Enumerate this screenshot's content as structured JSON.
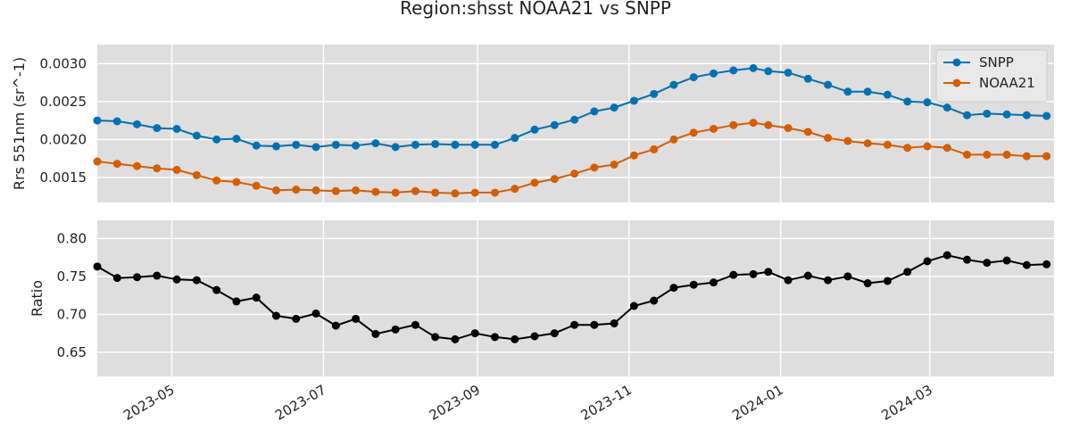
{
  "title": "Region:shsst NOAA21 vs SNPP",
  "chart_data": [
    {
      "type": "line",
      "ylabel": "Rrs 551nm (sr^-1)",
      "xlim": [
        "2023-04-01",
        "2024-04-20"
      ],
      "ylim": [
        0.00117,
        0.00325
      ],
      "yticks": [
        0.0015,
        0.002,
        0.0025,
        0.003
      ],
      "ytick_labels": [
        "0.0015",
        "0.0020",
        "0.0025",
        "0.0030"
      ],
      "grid": true,
      "legend": "top-right",
      "x": [
        "2023-04-01",
        "2023-04-09",
        "2023-04-17",
        "2023-04-25",
        "2023-05-03",
        "2023-05-11",
        "2023-05-19",
        "2023-05-27",
        "2023-06-04",
        "2023-06-12",
        "2023-06-20",
        "2023-06-28",
        "2023-07-06",
        "2023-07-14",
        "2023-07-22",
        "2023-07-30",
        "2023-08-07",
        "2023-08-15",
        "2023-08-23",
        "2023-08-31",
        "2023-09-08",
        "2023-09-16",
        "2023-09-24",
        "2023-10-02",
        "2023-10-10",
        "2023-10-18",
        "2023-10-26",
        "2023-11-03",
        "2023-11-11",
        "2023-11-19",
        "2023-11-27",
        "2023-12-05",
        "2023-12-13",
        "2023-12-21",
        "2023-12-27",
        "2024-01-04",
        "2024-01-12",
        "2024-01-20",
        "2024-01-28",
        "2024-02-05",
        "2024-02-13",
        "2024-02-21",
        "2024-02-29",
        "2024-03-08",
        "2024-03-16",
        "2024-03-24",
        "2024-04-01",
        "2024-04-09",
        "2024-04-17"
      ],
      "series": [
        {
          "name": "SNPP",
          "color": "#0072b2",
          "values": [
            0.00225,
            0.00224,
            0.0022,
            0.00215,
            0.00214,
            0.00205,
            0.002,
            0.00201,
            0.00192,
            0.00191,
            0.00193,
            0.0019,
            0.00193,
            0.00192,
            0.00195,
            0.0019,
            0.00193,
            0.00194,
            0.00193,
            0.00193,
            0.00193,
            0.00202,
            0.00213,
            0.00219,
            0.00226,
            0.00237,
            0.00242,
            0.00251,
            0.0026,
            0.00272,
            0.00282,
            0.00287,
            0.00291,
            0.00294,
            0.0029,
            0.00288,
            0.0028,
            0.00272,
            0.00263,
            0.00263,
            0.00259,
            0.0025,
            0.00249,
            0.00242,
            0.00232,
            0.00234,
            0.00233,
            0.00232,
            0.00231
          ]
        },
        {
          "name": "NOAA21",
          "color": "#d55e00",
          "values": [
            0.00171,
            0.00168,
            0.00165,
            0.00162,
            0.0016,
            0.00153,
            0.00146,
            0.00144,
            0.00139,
            0.00133,
            0.00134,
            0.00133,
            0.00132,
            0.00133,
            0.00131,
            0.0013,
            0.00132,
            0.0013,
            0.00129,
            0.0013,
            0.0013,
            0.00135,
            0.00143,
            0.00148,
            0.00155,
            0.00163,
            0.00167,
            0.00179,
            0.00187,
            0.002,
            0.00209,
            0.00214,
            0.00219,
            0.00222,
            0.00219,
            0.00215,
            0.0021,
            0.00202,
            0.00198,
            0.00195,
            0.00193,
            0.00189,
            0.00191,
            0.00189,
            0.0018,
            0.0018,
            0.0018,
            0.00178,
            0.00178
          ]
        }
      ]
    },
    {
      "type": "line",
      "ylabel": "Ratio",
      "xlim": [
        "2023-04-01",
        "2024-04-20"
      ],
      "ylim": [
        0.618,
        0.824
      ],
      "yticks": [
        0.65,
        0.7,
        0.75,
        0.8
      ],
      "ytick_labels": [
        "0.65",
        "0.70",
        "0.75",
        "0.80"
      ],
      "xticks": [
        "2023-05-01",
        "2023-07-01",
        "2023-09-01",
        "2023-11-01",
        "2024-01-01",
        "2024-03-01"
      ],
      "xtick_labels": [
        "2023-05",
        "2023-07",
        "2023-09",
        "2023-11",
        "2024-01",
        "2024-03"
      ],
      "grid": true,
      "x": [
        "2023-04-01",
        "2023-04-09",
        "2023-04-17",
        "2023-04-25",
        "2023-05-03",
        "2023-05-11",
        "2023-05-19",
        "2023-05-27",
        "2023-06-04",
        "2023-06-12",
        "2023-06-20",
        "2023-06-28",
        "2023-07-06",
        "2023-07-14",
        "2023-07-22",
        "2023-07-30",
        "2023-08-07",
        "2023-08-15",
        "2023-08-23",
        "2023-08-31",
        "2023-09-08",
        "2023-09-16",
        "2023-09-24",
        "2023-10-02",
        "2023-10-10",
        "2023-10-18",
        "2023-10-26",
        "2023-11-03",
        "2023-11-11",
        "2023-11-19",
        "2023-11-27",
        "2023-12-05",
        "2023-12-13",
        "2023-12-21",
        "2023-12-27",
        "2024-01-04",
        "2024-01-12",
        "2024-01-20",
        "2024-01-28",
        "2024-02-05",
        "2024-02-13",
        "2024-02-21",
        "2024-02-29",
        "2024-03-08",
        "2024-03-16",
        "2024-03-24",
        "2024-04-01",
        "2024-04-09",
        "2024-04-17"
      ],
      "series": [
        {
          "color": "#000000",
          "values": [
            0.763,
            0.748,
            0.749,
            0.751,
            0.746,
            0.745,
            0.732,
            0.717,
            0.722,
            0.698,
            0.694,
            0.701,
            0.685,
            0.694,
            0.674,
            0.68,
            0.686,
            0.67,
            0.667,
            0.675,
            0.67,
            0.667,
            0.671,
            0.675,
            0.686,
            0.686,
            0.688,
            0.711,
            0.718,
            0.735,
            0.739,
            0.742,
            0.752,
            0.753,
            0.756,
            0.745,
            0.751,
            0.745,
            0.75,
            0.741,
            0.744,
            0.756,
            0.77,
            0.778,
            0.772,
            0.768,
            0.771,
            0.765,
            0.766
          ]
        }
      ]
    }
  ]
}
